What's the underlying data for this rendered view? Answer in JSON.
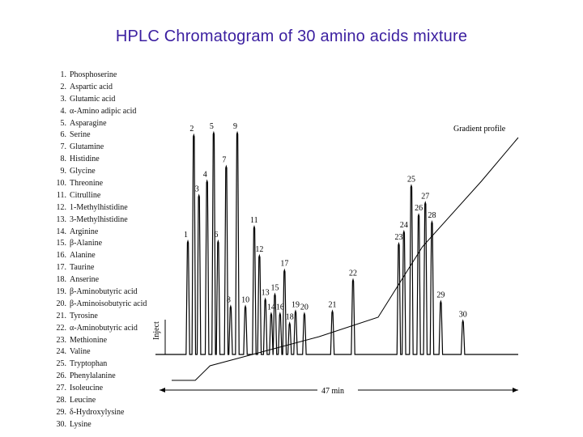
{
  "title": "HPLC Chromatogram of 30 amino acids mixture",
  "legend": [
    {
      "num": "1.",
      "name": "Phosphoserine"
    },
    {
      "num": "2.",
      "name": "Aspartic acid"
    },
    {
      "num": "3.",
      "name": "Glutamic acid"
    },
    {
      "num": "4.",
      "name": "α-Amino adipic acid"
    },
    {
      "num": "5.",
      "name": "Asparagine"
    },
    {
      "num": "6.",
      "name": "Serine"
    },
    {
      "num": "7.",
      "name": "Glutamine"
    },
    {
      "num": "8.",
      "name": "Histidine"
    },
    {
      "num": "9.",
      "name": "Glycine"
    },
    {
      "num": "10.",
      "name": "Threonine"
    },
    {
      "num": "11.",
      "name": "Citrulline"
    },
    {
      "num": "12.",
      "name": "1-Methylhistidine"
    },
    {
      "num": "13.",
      "name": "3-Methylhistidine"
    },
    {
      "num": "14.",
      "name": "Arginine"
    },
    {
      "num": "15.",
      "name": "β-Alanine"
    },
    {
      "num": "16.",
      "name": "Alanine"
    },
    {
      "num": "17.",
      "name": "Taurine"
    },
    {
      "num": "18.",
      "name": "Anserine"
    },
    {
      "num": "19.",
      "name": "β-Aminobutyric acid"
    },
    {
      "num": "20.",
      "name": "β-Aminoisobutyric acid"
    },
    {
      "num": "21.",
      "name": "Tyrosine"
    },
    {
      "num": "22.",
      "name": "α-Aminobutyric acid"
    },
    {
      "num": "23.",
      "name": "Methionine"
    },
    {
      "num": "24.",
      "name": "Valine"
    },
    {
      "num": "25.",
      "name": "Tryptophan"
    },
    {
      "num": "26.",
      "name": "Phenylalanine"
    },
    {
      "num": "27.",
      "name": "Isoleucine"
    },
    {
      "num": "28.",
      "name": "Leucine"
    },
    {
      "num": "29.",
      "name": "δ-Hydroxylysine"
    },
    {
      "num": "30.",
      "name": "Lysine"
    }
  ],
  "chart_data": {
    "type": "line",
    "x_range": [
      0,
      47
    ],
    "y_range": [
      0,
      100
    ],
    "inject_label": "Inject",
    "gradient_label": "Gradient profile",
    "duration_label": "47 min",
    "gradient_profile": [
      [
        0,
        0
      ],
      [
        3.2,
        0
      ],
      [
        5.2,
        6
      ],
      [
        20,
        18
      ],
      [
        28,
        26
      ],
      [
        34,
        55
      ],
      [
        42,
        82
      ],
      [
        47,
        100
      ]
    ],
    "peaks": [
      {
        "label": "1",
        "t": 2.2,
        "h": 47
      },
      {
        "label": "2",
        "t": 3.0,
        "h": 91
      },
      {
        "label": "3",
        "t": 3.7,
        "h": 66
      },
      {
        "label": "4",
        "t": 4.8,
        "h": 72
      },
      {
        "label": "5",
        "t": 5.7,
        "h": 92
      },
      {
        "label": "6",
        "t": 6.3,
        "h": 47
      },
      {
        "label": "7",
        "t": 7.4,
        "h": 78
      },
      {
        "label": "8",
        "t": 8.0,
        "h": 20
      },
      {
        "label": "9",
        "t": 8.9,
        "h": 92
      },
      {
        "label": "10",
        "t": 10.0,
        "h": 20
      },
      {
        "label": "11",
        "t": 11.2,
        "h": 53
      },
      {
        "label": "12",
        "t": 11.9,
        "h": 41
      },
      {
        "label": "13",
        "t": 12.7,
        "h": 23
      },
      {
        "label": "14",
        "t": 13.5,
        "h": 17
      },
      {
        "label": "15",
        "t": 14.0,
        "h": 25
      },
      {
        "label": "16",
        "t": 14.7,
        "h": 17
      },
      {
        "label": "17",
        "t": 15.3,
        "h": 35
      },
      {
        "label": "18",
        "t": 16.0,
        "h": 13
      },
      {
        "label": "19",
        "t": 16.8,
        "h": 18
      },
      {
        "label": "20",
        "t": 18.0,
        "h": 17
      },
      {
        "label": "21",
        "t": 21.8,
        "h": 18
      },
      {
        "label": "22",
        "t": 24.6,
        "h": 31
      },
      {
        "label": "23",
        "t": 30.8,
        "h": 46
      },
      {
        "label": "24",
        "t": 31.5,
        "h": 51
      },
      {
        "label": "25",
        "t": 32.5,
        "h": 70
      },
      {
        "label": "26",
        "t": 33.5,
        "h": 58
      },
      {
        "label": "27",
        "t": 34.4,
        "h": 63
      },
      {
        "label": "28",
        "t": 35.3,
        "h": 55
      },
      {
        "label": "29",
        "t": 36.5,
        "h": 22
      },
      {
        "label": "30",
        "t": 39.5,
        "h": 14
      }
    ]
  }
}
